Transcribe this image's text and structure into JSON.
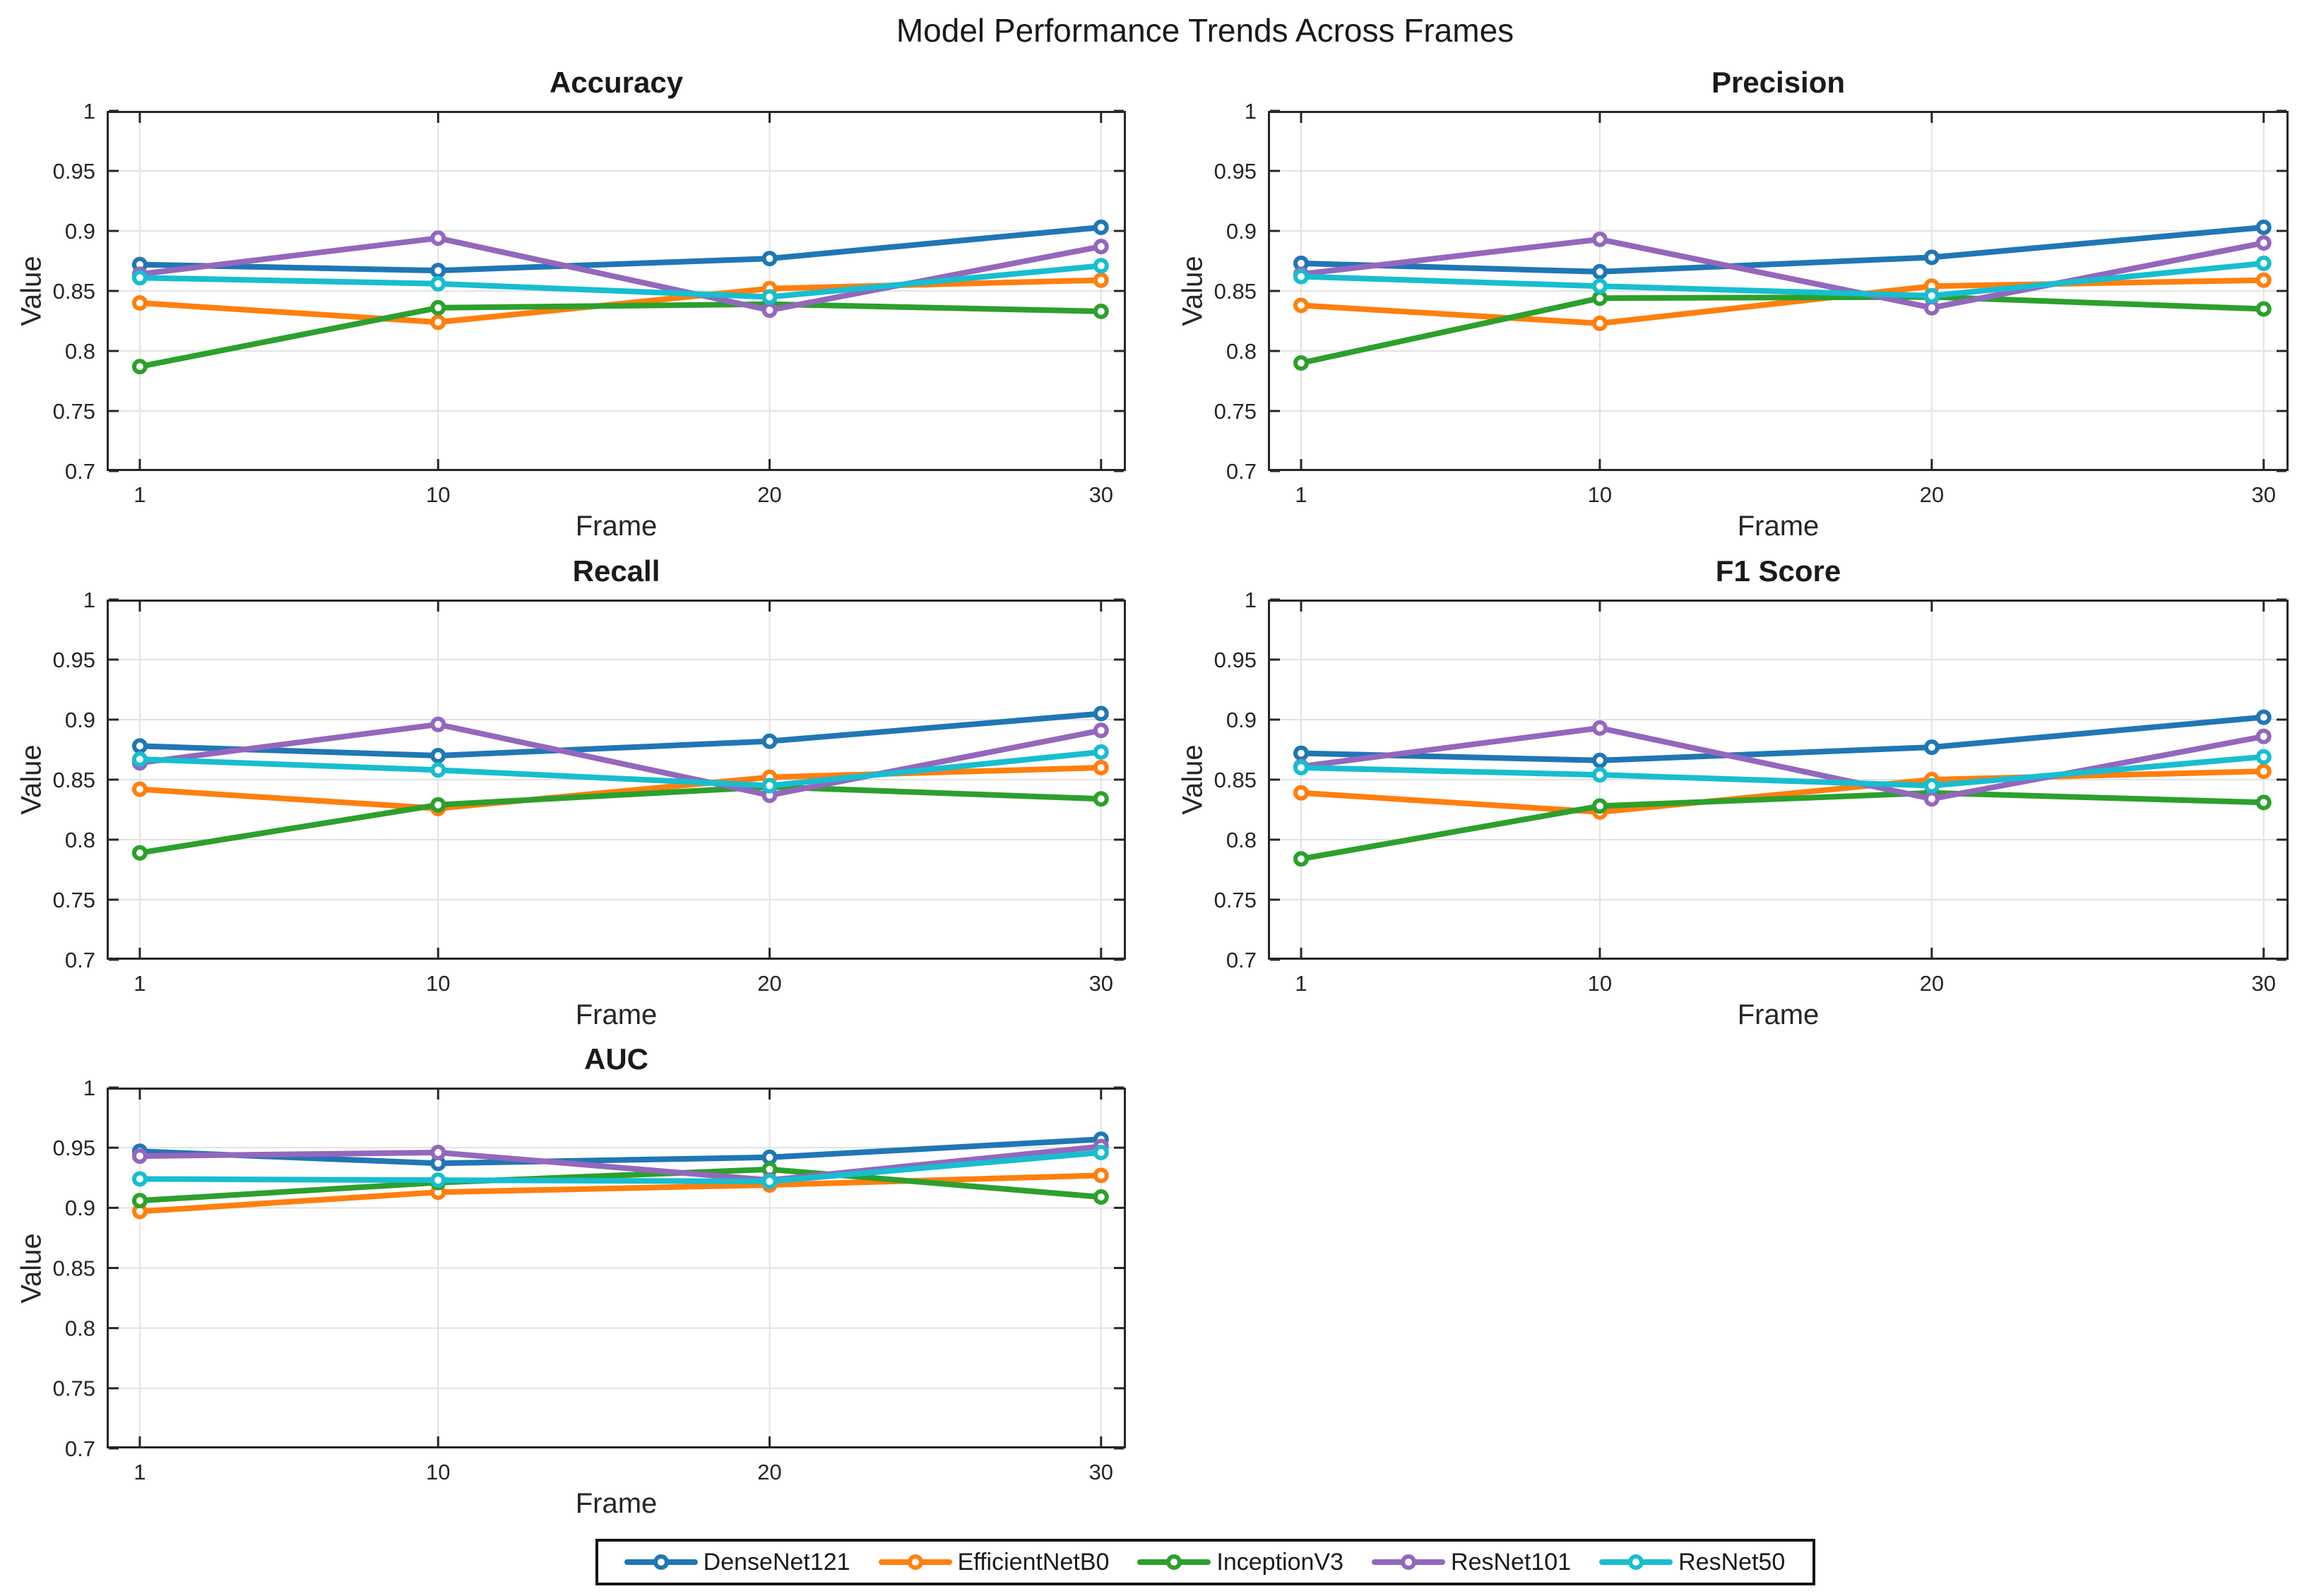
{
  "figure": {
    "title": "Model Performance Trends Across Frames",
    "background_color": "#ffffff",
    "text_color": "#262626",
    "grid_color": "#e2e2e2",
    "axis_color": "#262626"
  },
  "legend": {
    "position": "bottom-center",
    "items": [
      {
        "label": "DenseNet121",
        "color": "#1f77b4",
        "marker": "circle"
      },
      {
        "label": "EfficientNetB0",
        "color": "#ff7f0e",
        "marker": "circle"
      },
      {
        "label": "InceptionV3",
        "color": "#2ca02c",
        "marker": "circle"
      },
      {
        "label": "ResNet101",
        "color": "#9467bd",
        "marker": "circle"
      },
      {
        "label": "ResNet50",
        "color": "#17becf",
        "marker": "circle"
      }
    ]
  },
  "chart_data": [
    {
      "type": "line",
      "title": "Accuracy",
      "xlabel": "Frame",
      "ylabel": "Value",
      "x": [
        1,
        10,
        20,
        30
      ],
      "xticks": [
        1,
        10,
        20,
        30
      ],
      "yticks": [
        0.7,
        0.75,
        0.8,
        0.85,
        0.9,
        0.95,
        1
      ],
      "xlim": [
        0,
        30.75
      ],
      "ylim": [
        0.7,
        1
      ],
      "grid": true,
      "series": [
        {
          "name": "DenseNet121",
          "color": "#1f77b4",
          "values": [
            0.872,
            0.867,
            0.877,
            0.903
          ]
        },
        {
          "name": "EfficientNetB0",
          "color": "#ff7f0e",
          "values": [
            0.84,
            0.824,
            0.852,
            0.859
          ]
        },
        {
          "name": "InceptionV3",
          "color": "#2ca02c",
          "values": [
            0.787,
            0.836,
            0.839,
            0.833
          ]
        },
        {
          "name": "ResNet101",
          "color": "#9467bd",
          "values": [
            0.864,
            0.894,
            0.834,
            0.887
          ]
        },
        {
          "name": "ResNet50",
          "color": "#17becf",
          "values": [
            0.861,
            0.856,
            0.845,
            0.871
          ]
        }
      ]
    },
    {
      "type": "line",
      "title": "Precision",
      "xlabel": "Frame",
      "ylabel": "Value",
      "x": [
        1,
        10,
        20,
        30
      ],
      "xticks": [
        1,
        10,
        20,
        30
      ],
      "yticks": [
        0.7,
        0.75,
        0.8,
        0.85,
        0.9,
        0.95,
        1
      ],
      "xlim": [
        0,
        30.75
      ],
      "ylim": [
        0.7,
        1
      ],
      "grid": true,
      "series": [
        {
          "name": "DenseNet121",
          "color": "#1f77b4",
          "values": [
            0.873,
            0.866,
            0.878,
            0.903
          ]
        },
        {
          "name": "EfficientNetB0",
          "color": "#ff7f0e",
          "values": [
            0.838,
            0.823,
            0.854,
            0.859
          ]
        },
        {
          "name": "InceptionV3",
          "color": "#2ca02c",
          "values": [
            0.79,
            0.844,
            0.845,
            0.835
          ]
        },
        {
          "name": "ResNet101",
          "color": "#9467bd",
          "values": [
            0.864,
            0.893,
            0.836,
            0.89
          ]
        },
        {
          "name": "ResNet50",
          "color": "#17becf",
          "values": [
            0.862,
            0.854,
            0.846,
            0.873
          ]
        }
      ]
    },
    {
      "type": "line",
      "title": "Recall",
      "xlabel": "Frame",
      "ylabel": "Value",
      "x": [
        1,
        10,
        20,
        30
      ],
      "xticks": [
        1,
        10,
        20,
        30
      ],
      "yticks": [
        0.7,
        0.75,
        0.8,
        0.85,
        0.9,
        0.95,
        1
      ],
      "xlim": [
        0,
        30.75
      ],
      "ylim": [
        0.7,
        1
      ],
      "grid": true,
      "series": [
        {
          "name": "DenseNet121",
          "color": "#1f77b4",
          "values": [
            0.878,
            0.87,
            0.882,
            0.905
          ]
        },
        {
          "name": "EfficientNetB0",
          "color": "#ff7f0e",
          "values": [
            0.842,
            0.826,
            0.852,
            0.86
          ]
        },
        {
          "name": "InceptionV3",
          "color": "#2ca02c",
          "values": [
            0.789,
            0.829,
            0.844,
            0.834
          ]
        },
        {
          "name": "ResNet101",
          "color": "#9467bd",
          "values": [
            0.864,
            0.896,
            0.837,
            0.891
          ]
        },
        {
          "name": "ResNet50",
          "color": "#17becf",
          "values": [
            0.867,
            0.858,
            0.845,
            0.873
          ]
        }
      ]
    },
    {
      "type": "line",
      "title": "F1 Score",
      "xlabel": "Frame",
      "ylabel": "Value",
      "x": [
        1,
        10,
        20,
        30
      ],
      "xticks": [
        1,
        10,
        20,
        30
      ],
      "yticks": [
        0.7,
        0.75,
        0.8,
        0.85,
        0.9,
        0.95,
        1
      ],
      "xlim": [
        0,
        30.75
      ],
      "ylim": [
        0.7,
        1
      ],
      "grid": true,
      "series": [
        {
          "name": "DenseNet121",
          "color": "#1f77b4",
          "values": [
            0.872,
            0.866,
            0.877,
            0.902
          ]
        },
        {
          "name": "EfficientNetB0",
          "color": "#ff7f0e",
          "values": [
            0.839,
            0.823,
            0.85,
            0.857
          ]
        },
        {
          "name": "InceptionV3",
          "color": "#2ca02c",
          "values": [
            0.784,
            0.828,
            0.839,
            0.831
          ]
        },
        {
          "name": "ResNet101",
          "color": "#9467bd",
          "values": [
            0.861,
            0.893,
            0.834,
            0.886
          ]
        },
        {
          "name": "ResNet50",
          "color": "#17becf",
          "values": [
            0.86,
            0.854,
            0.845,
            0.869
          ]
        }
      ]
    },
    {
      "type": "line",
      "title": "AUC",
      "xlabel": "Frame",
      "ylabel": "Value",
      "x": [
        1,
        10,
        20,
        30
      ],
      "xticks": [
        1,
        10,
        20,
        30
      ],
      "yticks": [
        0.7,
        0.75,
        0.8,
        0.85,
        0.9,
        0.95,
        1
      ],
      "xlim": [
        0,
        30.75
      ],
      "ylim": [
        0.7,
        1
      ],
      "grid": true,
      "series": [
        {
          "name": "DenseNet121",
          "color": "#1f77b4",
          "values": [
            0.947,
            0.937,
            0.942,
            0.957
          ]
        },
        {
          "name": "EfficientNetB0",
          "color": "#ff7f0e",
          "values": [
            0.897,
            0.913,
            0.919,
            0.927
          ]
        },
        {
          "name": "InceptionV3",
          "color": "#2ca02c",
          "values": [
            0.906,
            0.921,
            0.932,
            0.909
          ]
        },
        {
          "name": "ResNet101",
          "color": "#9467bd",
          "values": [
            0.943,
            0.946,
            0.923,
            0.951
          ]
        },
        {
          "name": "ResNet50",
          "color": "#17becf",
          "values": [
            0.924,
            0.923,
            0.922,
            0.946
          ]
        }
      ]
    }
  ]
}
